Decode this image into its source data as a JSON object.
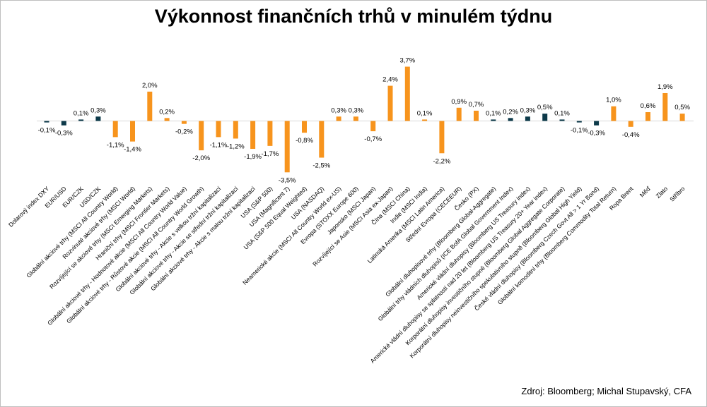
{
  "chart_data": {
    "type": "bar",
    "title": "Výkonnost finančních trhů v minulém týdnu",
    "source": "Zdroj: Bloomberg; Michal Stupavský, CFA",
    "colors": {
      "dark": "#0d3a4a",
      "orange": "#f7941d"
    },
    "ylim": [
      -3.5,
      3.7
    ],
    "categories": [
      "Dolarový index DXY",
      "EUR/USD",
      "EUR/CZK",
      "USD/CZK",
      "Globální akciové trhy (MSCI All Country World)",
      "Rozvinuté akciové trhy (MSCI World)",
      "Rozvíjející se akciové trhy (MSCI Emerging Markets)",
      "Hraniční trhy (MSCI Frontier Markets)",
      "Globální akciové trhy - Hodnotové akcie (MSCI All Country World Value)",
      "Globální akciové trhy - Růstové akcie (MSCI All Country World Growth)",
      "Globální akciové trhy - Akcie s velkou tržní kapitalizací",
      "Globální akciové trhy - Akcie se střední tržní kapitalizací",
      "Globální akciové trhy - Akcie s malou tržní kapitalizací",
      "USA (S&P 500)",
      "USA (Magnificent 7)",
      "USA (S&P 500 Equal Weighted)",
      "USA (NASDAQ)",
      "Neamerické akcie (MSCI All Country World ex-US)",
      "Evropa (STOXX Europe 600)",
      "Japonsko (MSCI Japan)",
      "Rozvíjející se Asie (MSCI Asia ex-Japan)",
      "Čína (MSCI China)",
      "Indie (MSCI India)",
      "Latinská Amerika (MSCI Latin America)",
      "Střední Evropa (CECEEUR)",
      "Česko (PX)",
      "Globální dluhopisové trhy (Bloomberg Global-Aggregate)",
      "Globální trhy vládních dluhopisů (ICE BofA Global Government Index)",
      "Americké vládní dluhopisy (Bloomberg US Treasury index)",
      "Americké vládní dluhopisy se splatností nad 20 let (Bloomberg US Treasury 20+ Year index)",
      "Korporátní dluhopisy investičního stupně (Bloomberg Global Aggregate Corporate)",
      "Korporátní dluhopisy neinvestičního spekulativního stupně (Bloomberg Global High Yield)",
      "České vládní dluhopisy (Bloomberg Czech Govt All > 1 Yr Bond)",
      "Globální komoditní trhy (Bloomberg Commodity Total Return)",
      "Ropa Brent",
      "Měď",
      "Zlato",
      "Stříbro"
    ],
    "values": [
      -0.1,
      -0.3,
      0.1,
      0.3,
      -1.1,
      -1.4,
      2.0,
      0.2,
      -0.2,
      -2.0,
      -1.1,
      -1.2,
      -1.9,
      -1.7,
      -3.5,
      -0.8,
      -2.5,
      0.3,
      0.3,
      -0.7,
      2.4,
      3.7,
      0.1,
      -2.2,
      0.9,
      0.7,
      0.1,
      0.2,
      0.3,
      0.5,
      0.1,
      -0.1,
      -0.3,
      1.0,
      -0.4,
      0.6,
      1.9,
      0.5
    ],
    "value_labels": [
      "-0,1%",
      "-0,3%",
      "0,1%",
      "0,3%",
      "-1,1%",
      "-1,4%",
      "2,0%",
      "0,2%",
      "-0,2%",
      "-2,0%",
      "-1,1%",
      "-1,2%",
      "-1,9%",
      "-1,7%",
      "-3,5%",
      "-0,8%",
      "-2,5%",
      "0,3%",
      "0,3%",
      "-0,7%",
      "2,4%",
      "3,7%",
      "0,1%",
      "-2,2%",
      "0,9%",
      "0,7%",
      "0,1%",
      "0,2%",
      "0,3%",
      "0,5%",
      "0,1%",
      "-0,1%",
      "-0,3%",
      "1,0%",
      "-0,4%",
      "0,6%",
      "1,9%",
      "0,5%"
    ],
    "bar_colors": [
      "dark",
      "dark",
      "dark",
      "dark",
      "orange",
      "orange",
      "orange",
      "orange",
      "orange",
      "orange",
      "orange",
      "orange",
      "orange",
      "orange",
      "orange",
      "orange",
      "orange",
      "orange",
      "orange",
      "orange",
      "orange",
      "orange",
      "orange",
      "orange",
      "orange",
      "orange",
      "dark",
      "dark",
      "dark",
      "dark",
      "dark",
      "dark",
      "dark",
      "orange",
      "orange",
      "orange",
      "orange",
      "orange"
    ]
  }
}
